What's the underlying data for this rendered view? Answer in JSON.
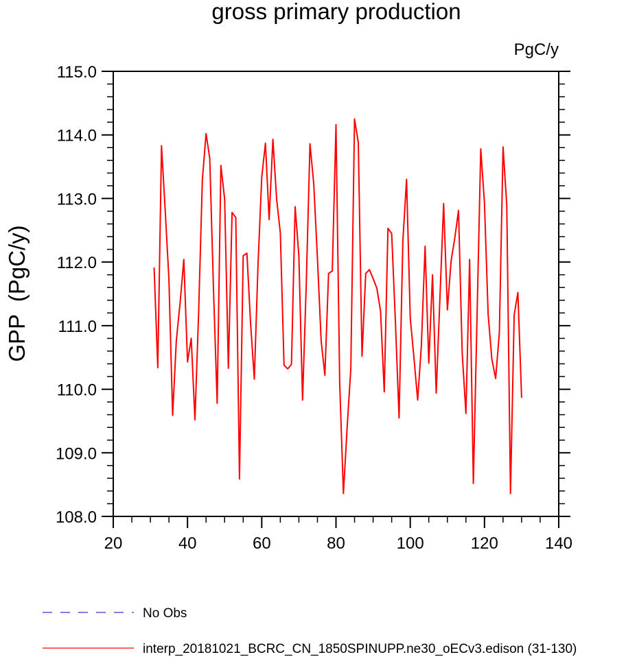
{
  "chart_data": {
    "type": "line",
    "title": "gross primary production",
    "units_label": "PgC/y",
    "xlabel": "",
    "ylabel": "GPP  (PgC/y)",
    "xlim": [
      20,
      140
    ],
    "ylim": [
      108,
      115
    ],
    "x_ticks": [
      20,
      40,
      60,
      80,
      100,
      120,
      140
    ],
    "x_tick_labels": [
      "20",
      "40",
      "60",
      "80",
      "100",
      "120",
      "140"
    ],
    "y_ticks": [
      108,
      109,
      110,
      111,
      112,
      113,
      114,
      115
    ],
    "y_tick_labels": [
      "108.0",
      "109.0",
      "110.0",
      "111.0",
      "112.0",
      "113.0",
      "114.0",
      "115.0"
    ],
    "grid": false,
    "legend_placement": "bottom-left",
    "legend": [
      {
        "label": "No Obs",
        "color": "#3333cc",
        "style": "dashed"
      },
      {
        "label": "interp_20181021_BCRC_CN_1850SPINUPP.ne30_oECv3.edison (31-130)",
        "color": "#ff0000",
        "style": "solid"
      }
    ],
    "series": [
      {
        "name": "interp_20181021_BCRC_CN_1850SPINUPP.ne30_oECv3.edison (31-130)",
        "color": "#ff0000",
        "x_start": 31,
        "values": [
          111.91,
          110.34,
          113.83,
          112.81,
          111.73,
          109.59,
          110.77,
          111.36,
          112.04,
          110.43,
          110.8,
          109.52,
          111.21,
          113.29,
          114.02,
          113.63,
          111.58,
          109.78,
          113.52,
          112.99,
          110.33,
          112.78,
          112.7,
          108.59,
          112.1,
          112.14,
          111.03,
          110.16,
          111.96,
          113.33,
          113.87,
          112.67,
          113.93,
          112.99,
          112.46,
          110.38,
          110.32,
          110.39,
          112.87,
          112.1,
          109.83,
          111.66,
          113.86,
          113.23,
          112.05,
          110.76,
          110.22,
          111.82,
          111.86,
          114.16,
          110.1,
          108.36,
          109.39,
          110.33,
          114.25,
          113.88,
          110.52,
          111.82,
          111.88,
          111.74,
          111.59,
          111.23,
          109.96,
          112.53,
          112.45,
          111.08,
          109.55,
          112.33,
          113.3,
          111.12,
          110.49,
          109.83,
          110.69,
          112.25,
          110.41,
          111.8,
          109.94,
          111.43,
          112.92,
          111.25,
          112.02,
          112.38,
          112.81,
          110.56,
          109.62,
          112.04,
          108.52,
          111.15,
          113.78,
          112.93,
          111.17,
          110.47,
          110.17,
          110.89,
          113.81,
          112.89,
          108.36,
          111.17,
          111.52,
          109.87
        ]
      }
    ]
  }
}
